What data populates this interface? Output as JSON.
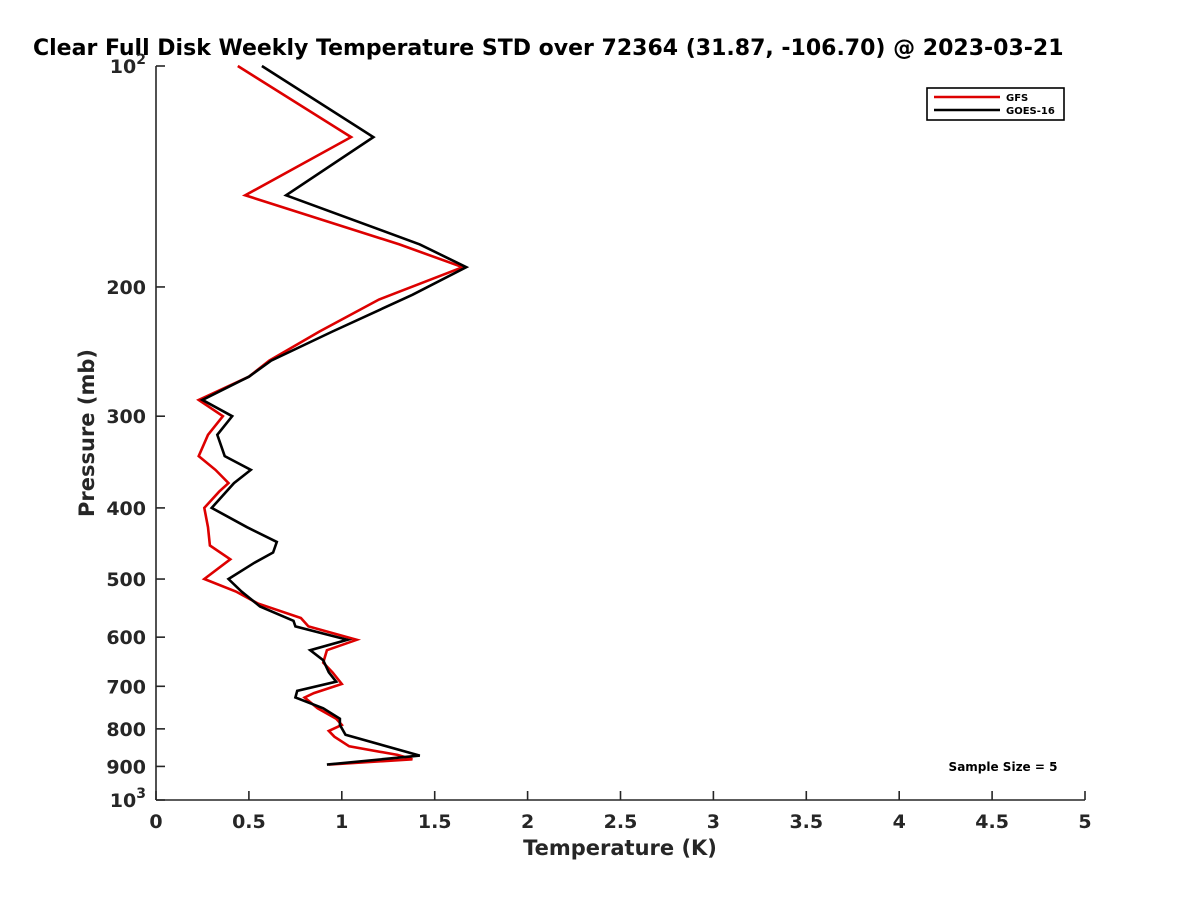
{
  "chart_data": {
    "type": "line",
    "title": "Clear Full Disk Weekly Temperature STD over 72364 (31.87, -106.70) @ 2023-03-21",
    "xlabel": "Temperature (K)",
    "ylabel": "Pressure (mb)",
    "xlim": [
      0,
      5
    ],
    "ylim": [
      100,
      1000
    ],
    "y_scale": "log",
    "y_reversed": true,
    "x_ticks": [
      "0",
      "0.5",
      "1",
      "1.5",
      "2",
      "2.5",
      "3",
      "3.5",
      "4",
      "4.5",
      "5"
    ],
    "y_ticks": [
      {
        "value": 100,
        "base": "10",
        "exp": "2"
      },
      {
        "value": 200,
        "label": "200"
      },
      {
        "value": 300,
        "label": "300"
      },
      {
        "value": 400,
        "label": "400"
      },
      {
        "value": 500,
        "label": "500"
      },
      {
        "value": 600,
        "label": "600"
      },
      {
        "value": 700,
        "label": "700"
      },
      {
        "value": 800,
        "label": "800"
      },
      {
        "value": 900,
        "label": "900"
      },
      {
        "value": 1000,
        "base": "10",
        "exp": "3"
      }
    ],
    "legend_position": "top-right",
    "grid": false,
    "annotation": "Sample Size = 5",
    "series": [
      {
        "name": "GFS",
        "color": "#dd0000",
        "points": [
          [
            0.44,
            100
          ],
          [
            1.05,
            125
          ],
          [
            0.48,
            150
          ],
          [
            1.31,
            175
          ],
          [
            1.65,
            188
          ],
          [
            1.2,
            208
          ],
          [
            0.88,
            230
          ],
          [
            0.61,
            252
          ],
          [
            0.5,
            265
          ],
          [
            0.23,
            285
          ],
          [
            0.36,
            300
          ],
          [
            0.28,
            318
          ],
          [
            0.23,
            340
          ],
          [
            0.32,
            355
          ],
          [
            0.39,
            370
          ],
          [
            0.34,
            380
          ],
          [
            0.26,
            400
          ],
          [
            0.28,
            425
          ],
          [
            0.29,
            450
          ],
          [
            0.4,
            470
          ],
          [
            0.26,
            500
          ],
          [
            0.43,
            520
          ],
          [
            0.55,
            540
          ],
          [
            0.78,
            565
          ],
          [
            0.82,
            580
          ],
          [
            1.08,
            605
          ],
          [
            0.92,
            625
          ],
          [
            0.9,
            650
          ],
          [
            0.95,
            670
          ],
          [
            1.0,
            695
          ],
          [
            0.85,
            715
          ],
          [
            0.8,
            725
          ],
          [
            0.87,
            750
          ],
          [
            0.97,
            775
          ],
          [
            1.0,
            790
          ],
          [
            0.93,
            805
          ],
          [
            0.96,
            820
          ],
          [
            1.04,
            845
          ],
          [
            1.3,
            868
          ],
          [
            1.38,
            880
          ],
          [
            0.93,
            895
          ]
        ]
      },
      {
        "name": "GOES-16",
        "color": "#000000",
        "points": [
          [
            0.57,
            100
          ],
          [
            1.17,
            125
          ],
          [
            0.7,
            150
          ],
          [
            1.42,
            175
          ],
          [
            1.67,
            188
          ],
          [
            1.38,
            205
          ],
          [
            0.95,
            230
          ],
          [
            0.62,
            252
          ],
          [
            0.5,
            265
          ],
          [
            0.25,
            285
          ],
          [
            0.41,
            300
          ],
          [
            0.33,
            318
          ],
          [
            0.37,
            340
          ],
          [
            0.51,
            355
          ],
          [
            0.42,
            370
          ],
          [
            0.3,
            400
          ],
          [
            0.49,
            425
          ],
          [
            0.65,
            445
          ],
          [
            0.63,
            460
          ],
          [
            0.53,
            475
          ],
          [
            0.39,
            500
          ],
          [
            0.46,
            520
          ],
          [
            0.56,
            545
          ],
          [
            0.74,
            570
          ],
          [
            0.75,
            580
          ],
          [
            1.03,
            605
          ],
          [
            0.83,
            625
          ],
          [
            0.9,
            645
          ],
          [
            0.93,
            670
          ],
          [
            0.97,
            690
          ],
          [
            0.76,
            710
          ],
          [
            0.75,
            725
          ],
          [
            0.9,
            750
          ],
          [
            0.99,
            775
          ],
          [
            0.99,
            790
          ],
          [
            1.02,
            815
          ],
          [
            1.42,
            870
          ],
          [
            0.92,
            895
          ]
        ]
      }
    ]
  }
}
